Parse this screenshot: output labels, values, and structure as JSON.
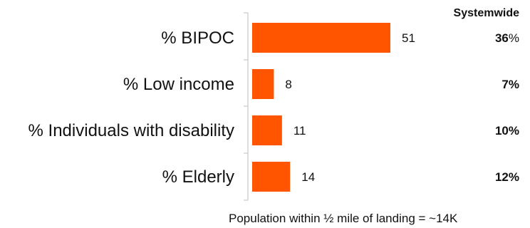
{
  "chart_data": {
    "type": "bar",
    "orientation": "horizontal",
    "categories": [
      "% BIPOC",
      "% Low income",
      "% Individuals with disability",
      "% Elderly"
    ],
    "values": [
      51,
      8,
      11,
      14
    ],
    "data_labels": [
      "51",
      "8",
      "11",
      "14"
    ],
    "bar_color": "#FF5500",
    "grid": false,
    "systemwide_header": "Systemwide",
    "systemwide": [
      {
        "num": "36",
        "pct": "%"
      },
      {
        "num": "7%",
        "pct": ""
      },
      {
        "num": "10%",
        "pct": ""
      },
      {
        "num": "12%",
        "pct": ""
      }
    ],
    "footnote": "Population within ½ mile of landing = ~14K"
  }
}
